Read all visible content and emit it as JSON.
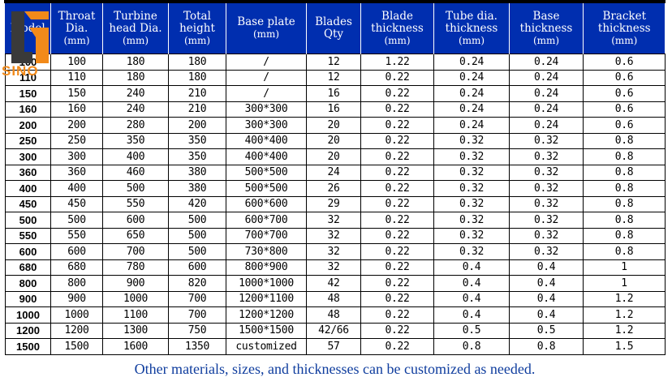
{
  "header": {
    "model": "Model",
    "throat": "Throat Dia.",
    "throat_unit": "(mm)",
    "turbine": "Turbine head Dia.",
    "turbine_unit": "(mm)",
    "total": "Total height",
    "total_unit": "(mm)",
    "base": "Base plate",
    "base_unit": "(mm)",
    "blades": "Blades Qty",
    "blade_th": "Blade thickness",
    "blade_th_unit": "(mm)",
    "tube_th": "Tube dia. thickness",
    "tube_th_unit": "(mm)",
    "base_th": "Base thickness",
    "base_th_unit": "(mm)",
    "bracket_th": "Bracket thickness",
    "bracket_th_unit": "(mm)"
  },
  "rows": [
    [
      "100",
      "100",
      "180",
      "180",
      "/",
      "12",
      "1.22",
      "0.24",
      "0.24",
      "0.6"
    ],
    [
      "110",
      "110",
      "180",
      "180",
      "/",
      "12",
      "0.22",
      "0.24",
      "0.24",
      "0.6"
    ],
    [
      "150",
      "150",
      "240",
      "210",
      "/",
      "16",
      "0.22",
      "0.24",
      "0.24",
      "0.6"
    ],
    [
      "160",
      "160",
      "240",
      "210",
      "300*300",
      "16",
      "0.22",
      "0.24",
      "0.24",
      "0.6"
    ],
    [
      "200",
      "200",
      "280",
      "200",
      "300*300",
      "20",
      "0.22",
      "0.24",
      "0.24",
      "0.6"
    ],
    [
      "250",
      "250",
      "350",
      "350",
      "400*400",
      "20",
      "0.22",
      "0.32",
      "0.32",
      "0.8"
    ],
    [
      "300",
      "300",
      "400",
      "350",
      "400*400",
      "20",
      "0.22",
      "0.32",
      "0.32",
      "0.8"
    ],
    [
      "360",
      "360",
      "460",
      "380",
      "500*500",
      "24",
      "0.22",
      "0.32",
      "0.32",
      "0.8"
    ],
    [
      "400",
      "400",
      "500",
      "380",
      "500*500",
      "26",
      "0.22",
      "0.32",
      "0.32",
      "0.8"
    ],
    [
      "450",
      "450",
      "550",
      "420",
      "600*600",
      "29",
      "0.22",
      "0.32",
      "0.32",
      "0.8"
    ],
    [
      "500",
      "500",
      "600",
      "500",
      "600*700",
      "32",
      "0.22",
      "0.32",
      "0.32",
      "0.8"
    ],
    [
      "550",
      "550",
      "650",
      "500",
      "700*700",
      "32",
      "0.22",
      "0.32",
      "0.32",
      "0.8"
    ],
    [
      "600",
      "600",
      "700",
      "500",
      "730*800",
      "32",
      "0.22",
      "0.32",
      "0.32",
      "0.8"
    ],
    [
      "680",
      "680",
      "780",
      "600",
      "800*900",
      "32",
      "0.22",
      "0.4",
      "0.4",
      "1"
    ],
    [
      "800",
      "800",
      "900",
      "820",
      "1000*1000",
      "42",
      "0.22",
      "0.4",
      "0.4",
      "1"
    ],
    [
      "900",
      "900",
      "1000",
      "700",
      "1200*1100",
      "48",
      "0.22",
      "0.4",
      "0.4",
      "1.2"
    ],
    [
      "1000",
      "1000",
      "1100",
      "700",
      "1200*1200",
      "48",
      "0.22",
      "0.4",
      "0.4",
      "1.2"
    ],
    [
      "1200",
      "1200",
      "1300",
      "750",
      "1500*1500",
      "42/66",
      "0.22",
      "0.5",
      "0.5",
      "1.2"
    ],
    [
      "1500",
      "1500",
      "1600",
      "1350",
      "customized",
      "57",
      "0.22",
      "0.8",
      "0.8",
      "1.5"
    ]
  ],
  "footer": "Other materials, sizes, and thicknesses can be customized as needed.",
  "logo": {
    "text": "SINO",
    "color_orange": "#f28a1a",
    "color_dark": "#3a3a3a"
  },
  "colors": {
    "header_bg": "#002eaf",
    "footer_text": "#0f3d9e"
  }
}
